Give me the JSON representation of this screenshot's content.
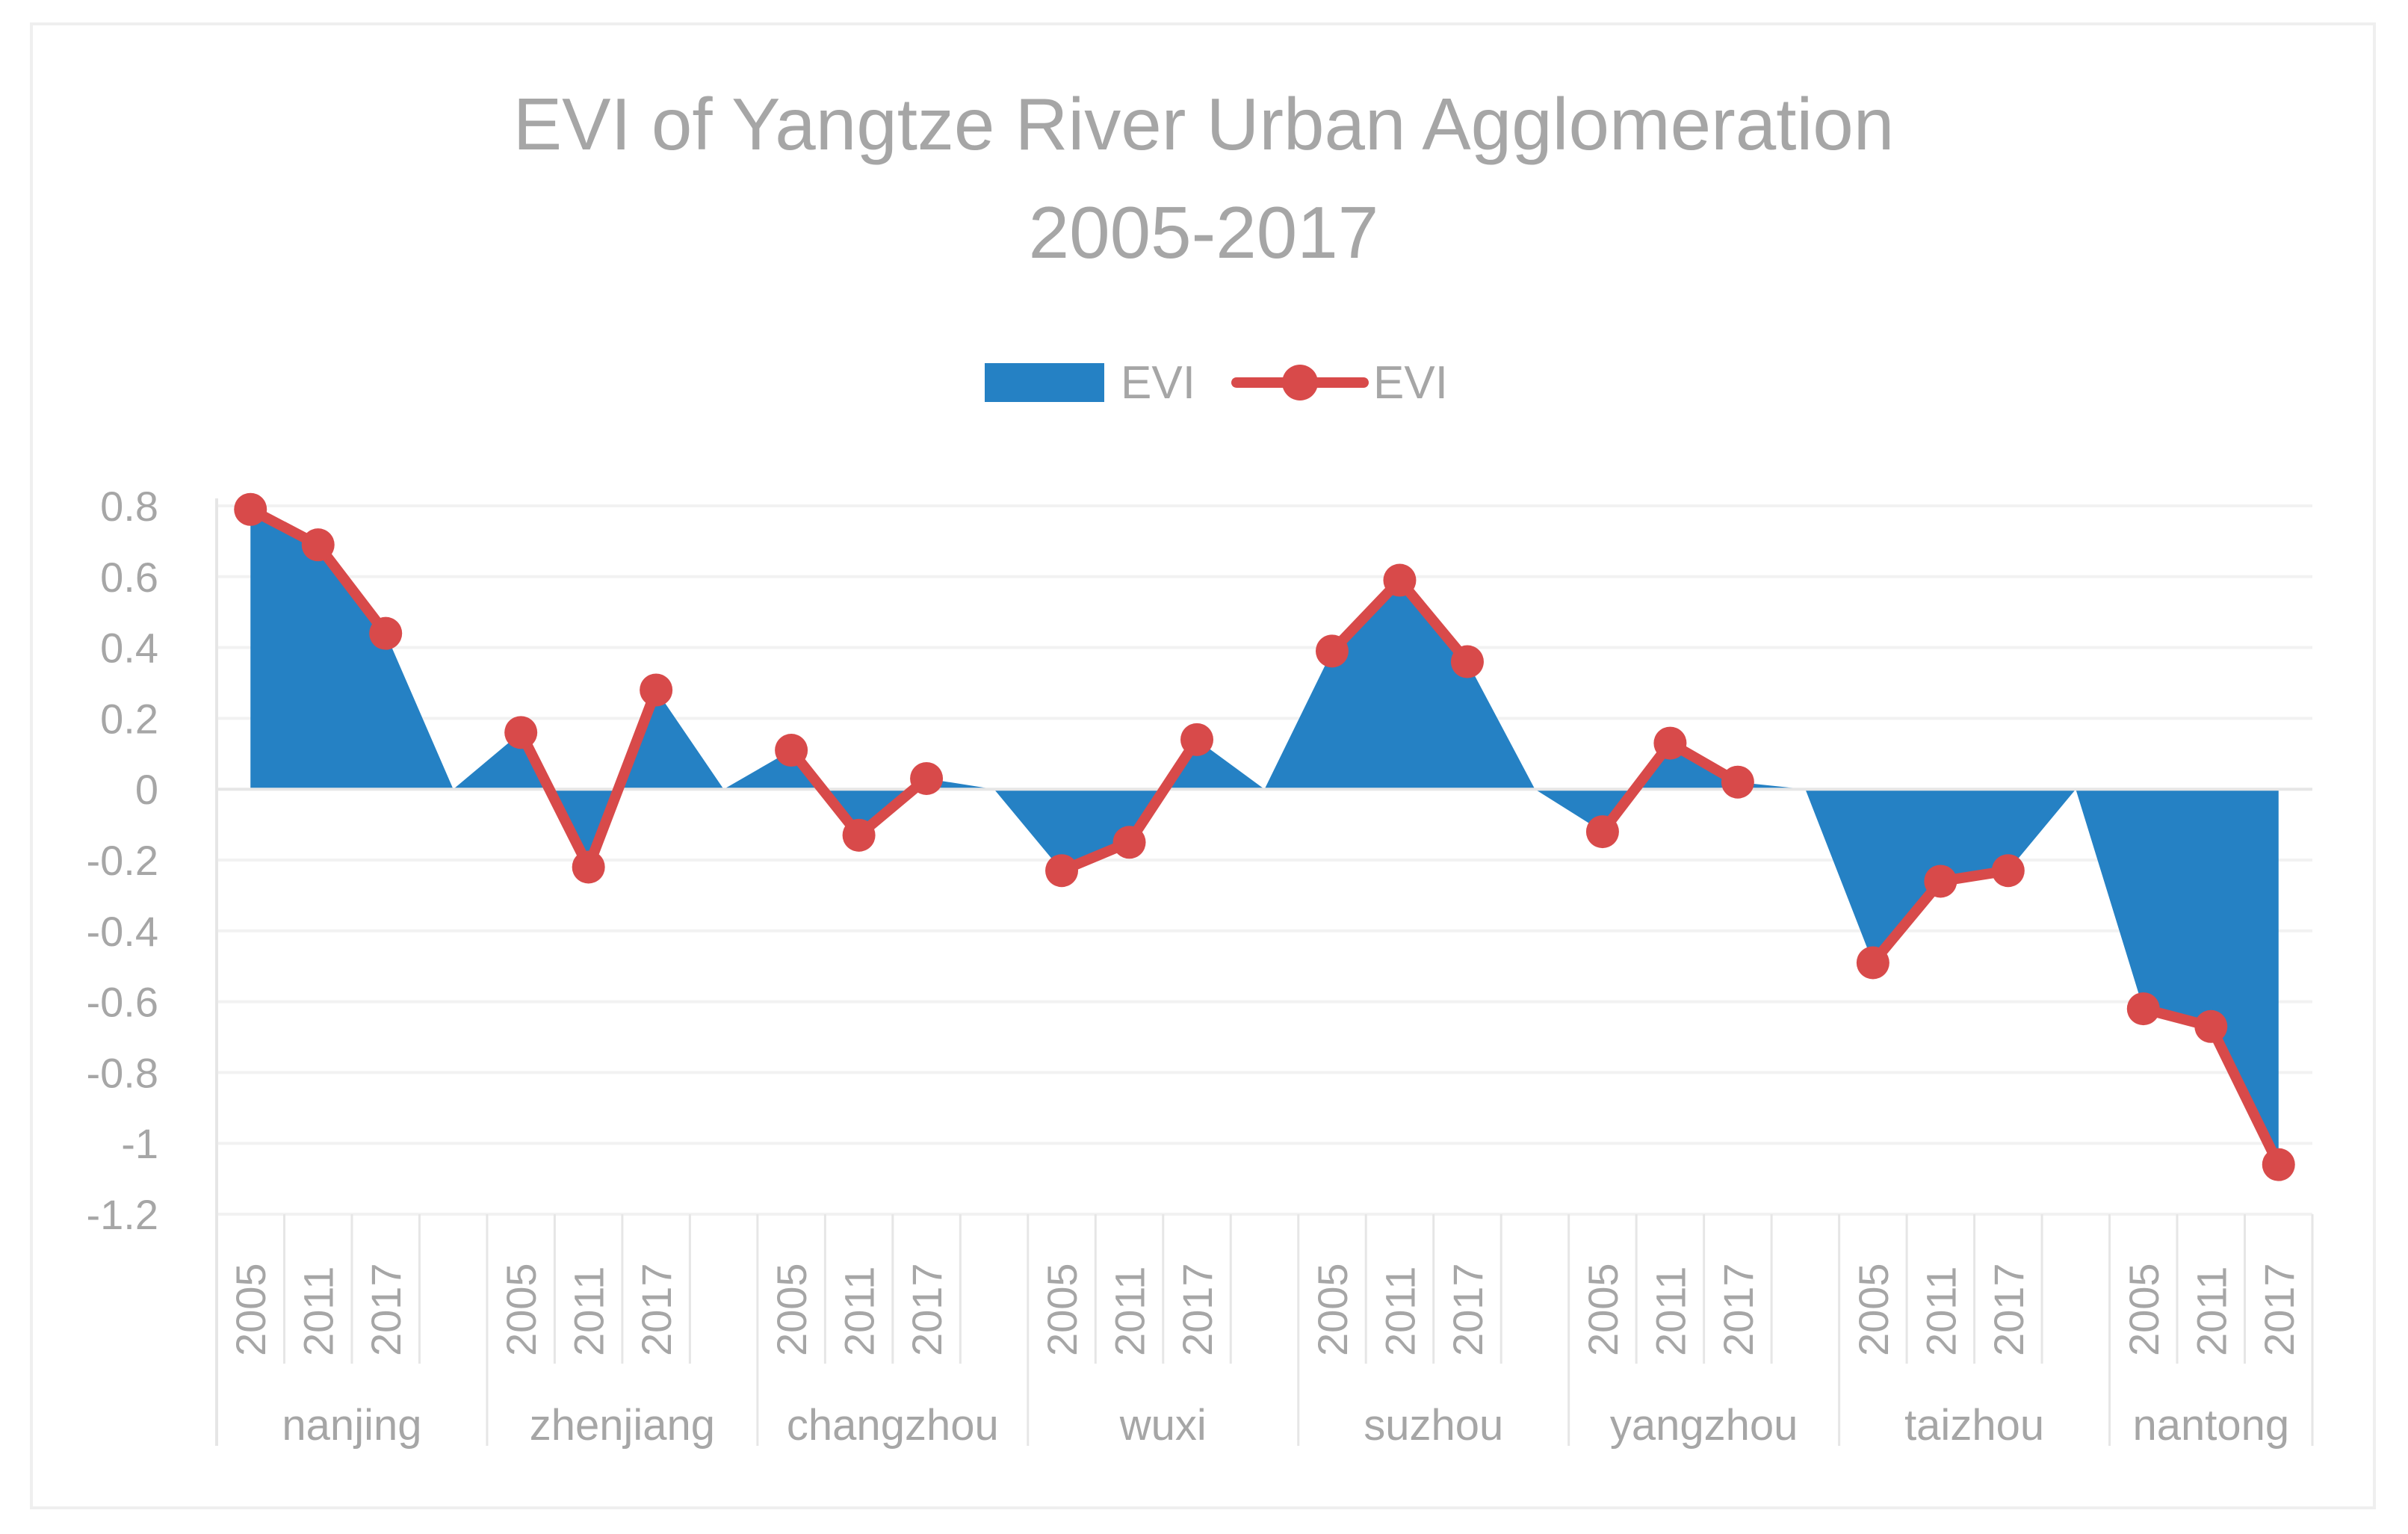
{
  "chart_data": {
    "type": "area",
    "title": "EVI of Yangtze River Urban Agglomeration",
    "subtitle": "2005-2017",
    "xlabel": "",
    "ylabel": "",
    "ylim": [
      -1.2,
      0.8
    ],
    "yticks": [
      0.8,
      0.6,
      0.4,
      0.2,
      0,
      -0.2,
      -0.4,
      -0.6,
      -0.8,
      -1,
      -1.2
    ],
    "ytick_labels": [
      "0.8",
      "0.6",
      "0.4",
      "0.2",
      "0",
      "-0.2",
      "-0.4",
      "-0.6",
      "-0.8",
      "-1",
      "-1.2"
    ],
    "grid": true,
    "legend_position": "top-center",
    "years_per_group": [
      "2005",
      "2011",
      "2017",
      ""
    ],
    "groups": [
      {
        "name": "nanjing",
        "values": [
          0.79,
          0.69,
          0.44,
          null
        ]
      },
      {
        "name": "zhenjiang",
        "values": [
          0.16,
          -0.22,
          0.28,
          null
        ]
      },
      {
        "name": "changzhou",
        "values": [
          0.11,
          -0.13,
          0.03,
          null
        ]
      },
      {
        "name": "wuxi",
        "values": [
          -0.23,
          -0.15,
          0.14,
          null
        ]
      },
      {
        "name": "suzhou",
        "values": [
          0.39,
          0.59,
          0.36,
          null
        ]
      },
      {
        "name": "yangzhou",
        "values": [
          -0.12,
          0.13,
          0.02,
          null
        ]
      },
      {
        "name": "taizhou",
        "values": [
          -0.49,
          -0.26,
          -0.23,
          null
        ]
      },
      {
        "name": "nantong",
        "values": [
          -0.62,
          -0.67,
          -1.06
        ]
      }
    ],
    "series": [
      {
        "name": "EVI",
        "kind": "area",
        "color": "#2581c4"
      },
      {
        "name": "EVI",
        "kind": "line-markers",
        "color": "#d84a4a"
      }
    ]
  }
}
